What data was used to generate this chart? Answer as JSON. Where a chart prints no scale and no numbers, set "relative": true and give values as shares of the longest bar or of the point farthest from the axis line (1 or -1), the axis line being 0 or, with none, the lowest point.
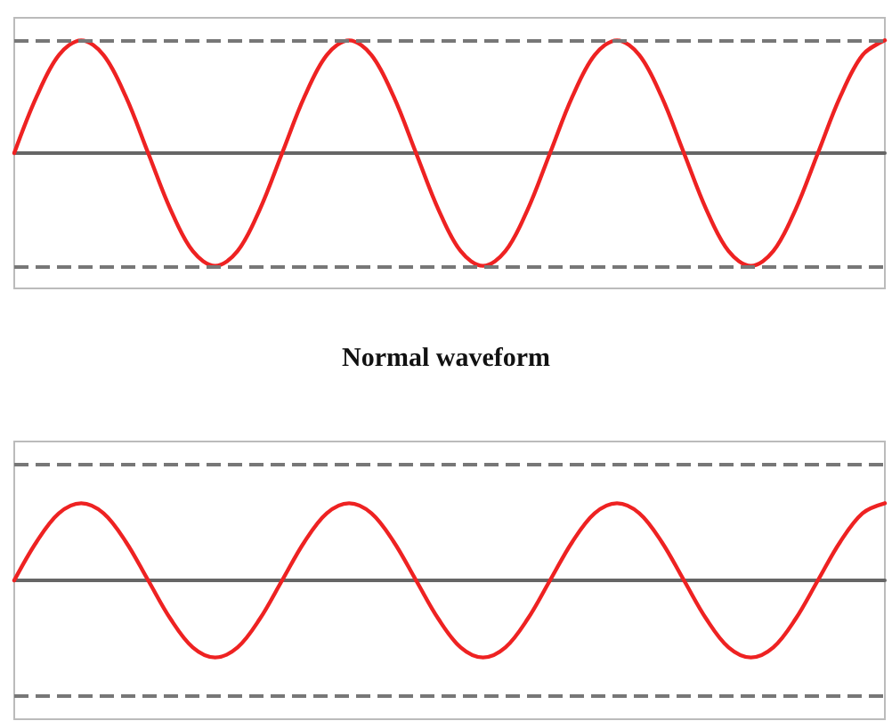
{
  "chart_data": [
    {
      "type": "line",
      "relative": true,
      "xlabel": "Normal waveform",
      "categories": [
        null,
        null,
        null,
        null,
        null,
        null,
        null,
        null,
        null,
        null,
        null,
        null,
        null,
        null,
        null,
        null,
        null,
        null,
        null,
        null,
        null,
        null,
        null,
        null,
        null,
        null,
        null,
        null,
        null,
        null,
        null,
        null,
        null,
        null,
        null,
        null,
        null,
        null,
        null,
        null
      ],
      "series": [
        {
          "color": "#ee2222",
          "values": [
            0,
            0.5,
            0.87,
            1,
            0.87,
            0.5,
            0,
            -0.5,
            -0.87,
            -1,
            -0.87,
            -0.5,
            0,
            0.5,
            0.87,
            1,
            0.87,
            0.5,
            0,
            -0.5,
            -0.87,
            -1,
            -0.87,
            -0.5,
            0,
            0.5,
            0.87,
            1,
            0.87,
            0.5,
            0,
            -0.5,
            -0.87,
            -1,
            -0.87,
            -0.5,
            0,
            0.5,
            0.87,
            1
          ]
        }
      ],
      "ref_lines": [
        {
          "axis": "y",
          "value": 1,
          "color": "#777777",
          "line_style": "dashed"
        },
        {
          "axis": "y",
          "value": -1,
          "color": "#777777",
          "line_style": "dashed"
        }
      ],
      "marker": "none",
      "line_style": "solid",
      "grid": false,
      "tick_labels": false
    },
    {
      "type": "line",
      "relative": true,
      "categories": [
        null,
        null,
        null,
        null,
        null,
        null,
        null,
        null,
        null,
        null,
        null,
        null,
        null,
        null,
        null,
        null,
        null,
        null,
        null,
        null,
        null,
        null,
        null,
        null,
        null,
        null,
        null,
        null,
        null,
        null,
        null,
        null,
        null,
        null,
        null,
        null,
        null,
        null,
        null,
        null
      ],
      "series": [
        {
          "color": "#ee2222",
          "values": [
            0,
            0.5,
            0.87,
            1,
            0.87,
            0.5,
            0,
            -0.5,
            -0.87,
            -1,
            -0.87,
            -0.5,
            0,
            0.5,
            0.87,
            1,
            0.87,
            0.5,
            0,
            -0.5,
            -0.87,
            -1,
            -0.87,
            -0.5,
            0,
            0.5,
            0.87,
            1,
            0.87,
            0.5,
            0,
            -0.5,
            -0.87,
            -1,
            -0.87,
            -0.5,
            0,
            0.5,
            0.87,
            1
          ]
        }
      ],
      "ref_lines": [
        {
          "axis": "y",
          "value": 1.5,
          "color": "#777777",
          "line_style": "dashed"
        },
        {
          "axis": "y",
          "value": -1.5,
          "color": "#777777",
          "line_style": "dashed"
        }
      ],
      "marker": "none",
      "line_style": "solid",
      "grid": false,
      "tick_labels": false
    }
  ]
}
